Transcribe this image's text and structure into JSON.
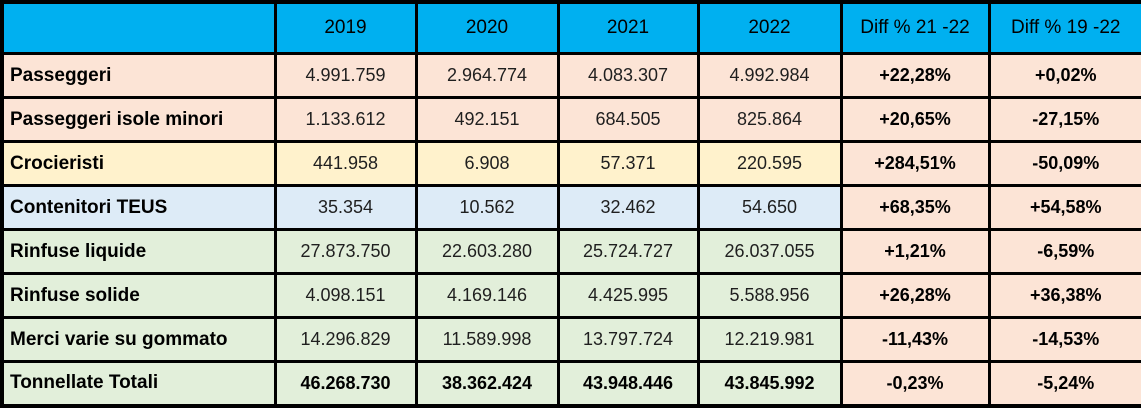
{
  "colors": {
    "header_bg": "#00B0F0",
    "diff_col_bg": "#FCE4D6",
    "border": "#000000",
    "row_peach": "#FCE4D6",
    "row_yellow": "#FFF2CC",
    "row_blue": "#DDEBF7",
    "row_green": "#E2EFDA"
  },
  "table": {
    "header": {
      "corner": "",
      "columns": [
        "2019",
        "2020",
        "2021",
        "2022",
        "Diff % 21 -22",
        "Diff % 19 -22"
      ]
    },
    "rows": [
      {
        "label": "Passeggeri",
        "bg": "#FCE4D6",
        "values": [
          "4.991.759",
          "2.964.774",
          "4.083.307",
          "4.992.984"
        ],
        "diffs": [
          "+22,28%",
          "+0,02%"
        ],
        "values_bold": false
      },
      {
        "label": "Passeggeri isole minori",
        "bg": "#FCE4D6",
        "values": [
          "1.133.612",
          "492.151",
          "684.505",
          "825.864"
        ],
        "diffs": [
          "+20,65%",
          "-27,15%"
        ],
        "values_bold": false
      },
      {
        "label": "Crocieristi",
        "bg": "#FFF2CC",
        "values": [
          "441.958",
          "6.908",
          "57.371",
          "220.595"
        ],
        "diffs": [
          "+284,51%",
          "-50,09%"
        ],
        "values_bold": false
      },
      {
        "label": "Contenitori TEUS",
        "bg": "#DDEBF7",
        "values": [
          "35.354",
          "10.562",
          "32.462",
          "54.650"
        ],
        "diffs": [
          "+68,35%",
          "+54,58%"
        ],
        "values_bold": false
      },
      {
        "label": "Rinfuse liquide",
        "bg": "#E2EFDA",
        "values": [
          "27.873.750",
          "22.603.280",
          "25.724.727",
          "26.037.055"
        ],
        "diffs": [
          "+1,21%",
          "-6,59%"
        ],
        "values_bold": false
      },
      {
        "label": "Rinfuse solide",
        "bg": "#E2EFDA",
        "values": [
          "4.098.151",
          "4.169.146",
          "4.425.995",
          "5.588.956"
        ],
        "diffs": [
          "+26,28%",
          "+36,38%"
        ],
        "values_bold": false
      },
      {
        "label": "Merci varie su gommato",
        "bg": "#E2EFDA",
        "values": [
          "14.296.829",
          "11.589.998",
          "13.797.724",
          "12.219.981"
        ],
        "diffs": [
          "-11,43%",
          "-14,53%"
        ],
        "values_bold": false
      },
      {
        "label": "Tonnellate Totali",
        "bg": "#E2EFDA",
        "values": [
          "46.268.730",
          "38.362.424",
          "43.948.446",
          "43.845.992"
        ],
        "diffs": [
          "-0,23%",
          "-5,24%"
        ],
        "values_bold": true
      }
    ]
  },
  "chart_data": {
    "type": "table",
    "title": "",
    "columns": [
      "",
      "2019",
      "2020",
      "2021",
      "2022",
      "Diff % 21 -22",
      "Diff % 19 -22"
    ],
    "rows": [
      [
        "Passeggeri",
        "4.991.759",
        "2.964.774",
        "4.083.307",
        "4.992.984",
        "+22,28%",
        "+0,02%"
      ],
      [
        "Passeggeri isole minori",
        "1.133.612",
        "492.151",
        "684.505",
        "825.864",
        "+20,65%",
        "-27,15%"
      ],
      [
        "Crocieristi",
        "441.958",
        "6.908",
        "57.371",
        "220.595",
        "+284,51%",
        "-50,09%"
      ],
      [
        "Contenitori TEUS",
        "35.354",
        "10.562",
        "32.462",
        "54.650",
        "+68,35%",
        "+54,58%"
      ],
      [
        "Rinfuse liquide",
        "27.873.750",
        "22.603.280",
        "25.724.727",
        "26.037.055",
        "+1,21%",
        "-6,59%"
      ],
      [
        "Rinfuse solide",
        "4.098.151",
        "4.169.146",
        "4.425.995",
        "5.588.956",
        "+26,28%",
        "+36,38%"
      ],
      [
        "Merci varie su gommato",
        "14.296.829",
        "11.589.998",
        "13.797.724",
        "12.219.981",
        "-11,43%",
        "-14,53%"
      ],
      [
        "Tonnellate Totali",
        "46.268.730",
        "38.362.424",
        "43.948.446",
        "43.845.992",
        "-0,23%",
        "-5,24%"
      ]
    ]
  }
}
